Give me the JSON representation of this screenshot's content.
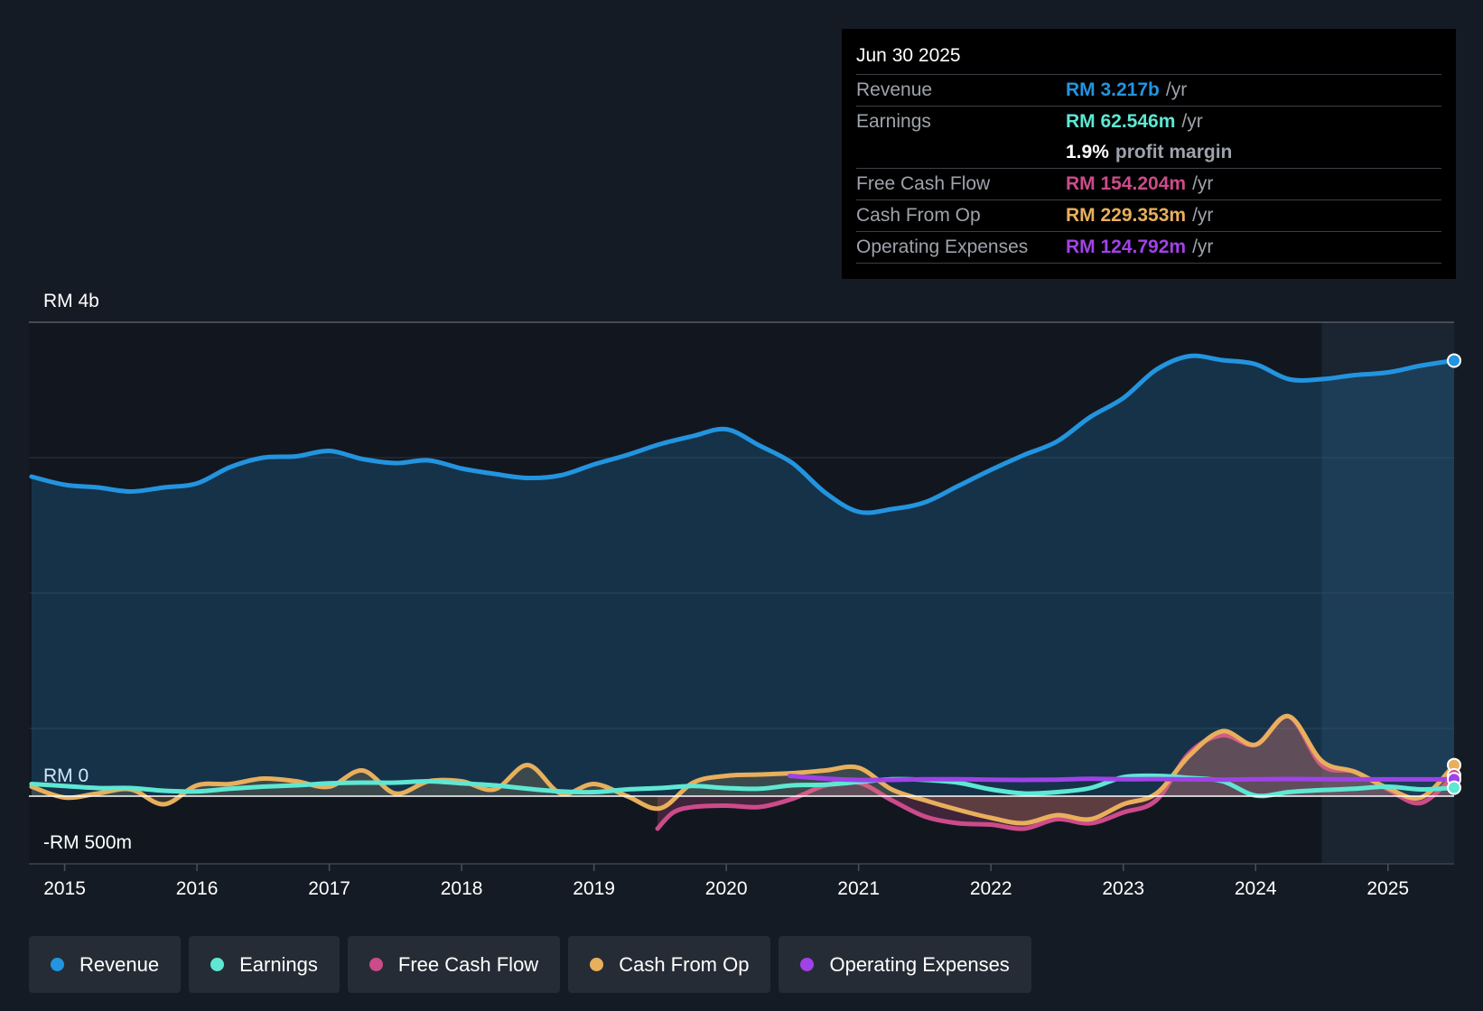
{
  "tooltip": {
    "date": "Jun 30 2025",
    "rows": [
      {
        "label": "Revenue",
        "value": "RM 3.217b",
        "unit": "/yr",
        "color": "#2394df"
      },
      {
        "label": "Earnings",
        "value": "RM 62.546m",
        "unit": "/yr",
        "color": "#5ee8d3"
      },
      {
        "label": "",
        "value": "1.9%",
        "unit": "profit margin",
        "color": "#ffffff"
      },
      {
        "label": "Free Cash Flow",
        "value": "RM 154.204m",
        "unit": "/yr",
        "color": "#cc4b8a"
      },
      {
        "label": "Cash From Op",
        "value": "RM 229.353m",
        "unit": "/yr",
        "color": "#e8af5c"
      },
      {
        "label": "Operating Expenses",
        "value": "RM 124.792m",
        "unit": "/yr",
        "color": "#a042e8"
      }
    ]
  },
  "legend": [
    {
      "label": "Revenue",
      "color": "#2394df"
    },
    {
      "label": "Earnings",
      "color": "#5ee8d3"
    },
    {
      "label": "Free Cash Flow",
      "color": "#cc4b8a"
    },
    {
      "label": "Cash From Op",
      "color": "#e8af5c"
    },
    {
      "label": "Operating Expenses",
      "color": "#a042e8"
    }
  ],
  "chart_data": {
    "type": "line",
    "title": "",
    "xlabel": "",
    "ylabel": "",
    "y_labels": {
      "top": "RM 4b",
      "zero": "RM 0",
      "bottom": "-RM 500m"
    },
    "xlim": [
      2014.73,
      2025.5
    ],
    "ylim": [
      -500,
      3500
    ],
    "x_ticks": [
      2015,
      2016,
      2017,
      2018,
      2019,
      2020,
      2021,
      2022,
      2023,
      2024,
      2025
    ],
    "x_tick_labels": [
      "2015",
      "2016",
      "2017",
      "2018",
      "2019",
      "2020",
      "2021",
      "2022",
      "2023",
      "2024",
      "2025"
    ],
    "forecast_start": 2024.5,
    "series": [
      {
        "name": "Revenue",
        "color": "#2394df",
        "fill": true,
        "x": [
          2014.75,
          2015.0,
          2015.25,
          2015.5,
          2015.75,
          2016.0,
          2016.25,
          2016.5,
          2016.75,
          2017.0,
          2017.25,
          2017.5,
          2017.75,
          2018.0,
          2018.25,
          2018.5,
          2018.75,
          2019.0,
          2019.25,
          2019.5,
          2019.75,
          2020.0,
          2020.25,
          2020.5,
          2020.75,
          2021.0,
          2021.25,
          2021.5,
          2021.75,
          2022.0,
          2022.25,
          2022.5,
          2022.75,
          2023.0,
          2023.25,
          2023.5,
          2023.75,
          2024.0,
          2024.25,
          2024.5,
          2024.75,
          2025.0,
          2025.25,
          2025.5
        ],
        "values": [
          2360,
          2300,
          2280,
          2250,
          2280,
          2310,
          2430,
          2500,
          2510,
          2550,
          2490,
          2460,
          2480,
          2420,
          2380,
          2350,
          2370,
          2450,
          2520,
          2600,
          2660,
          2710,
          2590,
          2460,
          2240,
          2100,
          2120,
          2170,
          2290,
          2410,
          2520,
          2620,
          2800,
          2940,
          3150,
          3250,
          3220,
          3190,
          3080,
          3080,
          3110,
          3130,
          3180,
          3217
        ]
      },
      {
        "name": "Earnings",
        "color": "#5ee8d3",
        "x": [
          2014.75,
          2015.0,
          2015.25,
          2015.5,
          2015.75,
          2016.0,
          2016.25,
          2016.5,
          2016.75,
          2017.0,
          2017.25,
          2017.5,
          2017.75,
          2018.0,
          2018.25,
          2018.5,
          2018.75,
          2019.0,
          2019.25,
          2019.5,
          2019.75,
          2020.0,
          2020.25,
          2020.5,
          2020.75,
          2021.0,
          2021.25,
          2021.5,
          2021.75,
          2022.0,
          2022.25,
          2022.5,
          2022.75,
          2023.0,
          2023.25,
          2023.5,
          2023.75,
          2024.0,
          2024.25,
          2024.5,
          2024.75,
          2025.0,
          2025.25,
          2025.5
        ],
        "values": [
          90,
          75,
          60,
          60,
          40,
          35,
          55,
          70,
          80,
          95,
          100,
          100,
          110,
          95,
          80,
          55,
          35,
          30,
          50,
          60,
          75,
          60,
          55,
          80,
          85,
          105,
          125,
          120,
          100,
          50,
          20,
          30,
          60,
          140,
          150,
          135,
          110,
          5,
          30,
          45,
          55,
          70,
          50,
          62.5
        ]
      },
      {
        "name": "Free Cash Flow",
        "color": "#cc4b8a",
        "fill": true,
        "x": [
          2019.48,
          2019.6,
          2019.75,
          2020.0,
          2020.25,
          2020.5,
          2020.75,
          2021.0,
          2021.25,
          2021.5,
          2021.75,
          2022.0,
          2022.25,
          2022.5,
          2022.75,
          2023.0,
          2023.25,
          2023.5,
          2023.75,
          2024.0,
          2024.25,
          2024.5,
          2024.75,
          2025.0,
          2025.25,
          2025.5
        ],
        "values": [
          -240,
          -120,
          -80,
          -70,
          -80,
          -20,
          80,
          100,
          -30,
          -150,
          -200,
          -210,
          -240,
          -170,
          -200,
          -120,
          -30,
          320,
          450,
          380,
          590,
          230,
          180,
          50,
          -50,
          154.2
        ]
      },
      {
        "name": "Cash From Op",
        "color": "#e8af5c",
        "fill": true,
        "x": [
          2014.75,
          2015.0,
          2015.25,
          2015.5,
          2015.75,
          2016.0,
          2016.25,
          2016.5,
          2016.75,
          2017.0,
          2017.25,
          2017.5,
          2017.75,
          2018.0,
          2018.25,
          2018.5,
          2018.75,
          2019.0,
          2019.25,
          2019.5,
          2019.75,
          2020.0,
          2020.25,
          2020.5,
          2020.75,
          2021.0,
          2021.25,
          2021.5,
          2021.75,
          2022.0,
          2022.25,
          2022.5,
          2022.75,
          2023.0,
          2023.25,
          2023.5,
          2023.75,
          2024.0,
          2024.25,
          2024.5,
          2024.75,
          2025.0,
          2025.25,
          2025.5
        ],
        "values": [
          70,
          -10,
          20,
          50,
          -60,
          80,
          90,
          130,
          110,
          70,
          190,
          20,
          110,
          110,
          50,
          230,
          20,
          90,
          0,
          -90,
          100,
          150,
          160,
          170,
          190,
          210,
          50,
          -30,
          -100,
          -160,
          -200,
          -140,
          -170,
          -60,
          20,
          300,
          480,
          380,
          590,
          260,
          180,
          60,
          -10,
          229.4
        ]
      },
      {
        "name": "Operating Expenses",
        "color": "#a042e8",
        "x": [
          2020.48,
          2020.75,
          2021.0,
          2021.25,
          2021.5,
          2021.75,
          2022.0,
          2022.25,
          2022.5,
          2022.75,
          2023.0,
          2023.25,
          2023.5,
          2023.75,
          2024.0,
          2024.25,
          2024.5,
          2024.75,
          2025.0,
          2025.25,
          2025.5
        ],
        "values": [
          150,
          130,
          120,
          120,
          125,
          125,
          122,
          120,
          122,
          128,
          125,
          126,
          124,
          122,
          125,
          127,
          125,
          124,
          124,
          124,
          124.8
        ]
      }
    ]
  }
}
